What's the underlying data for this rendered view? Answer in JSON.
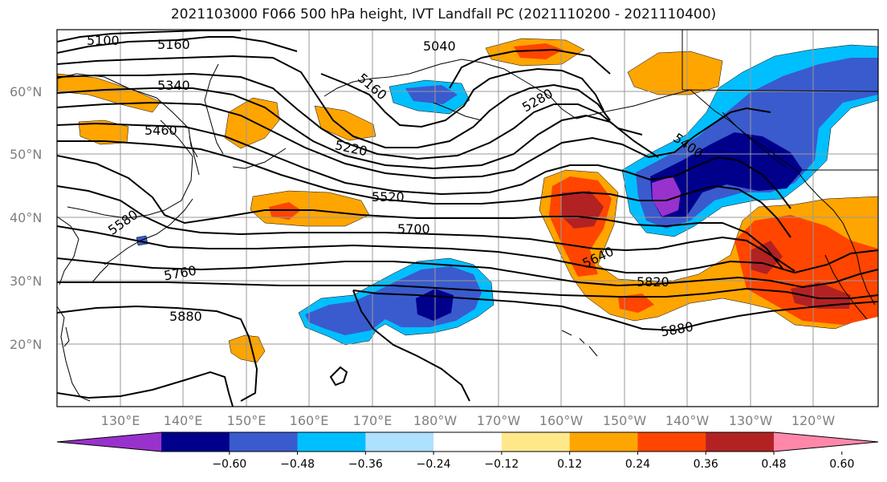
{
  "title": "2021103000 F066 500 hPa height, IVT Landfall PC (2021110200 - 2021110400)",
  "map": {
    "lat_labels": [
      "60°N",
      "50°N",
      "40°N",
      "30°N",
      "20°N"
    ],
    "lon_labels": [
      "130°E",
      "140°E",
      "150°E",
      "160°E",
      "170°E",
      "180°W",
      "170°W",
      "160°W",
      "150°W",
      "140°W",
      "130°W",
      "120°W"
    ],
    "contour_labels": [
      "5100",
      "5160",
      "5040",
      "5340",
      "5160",
      "5460",
      "5220",
      "5280",
      "5400",
      "5520",
      "5580",
      "5700",
      "5640",
      "5760",
      "5820",
      "5880",
      "5880"
    ]
  },
  "colorbar": {
    "colors": [
      "#9932cc",
      "#00008b",
      "#3a5bcd",
      "#00bfff",
      "#aee0ff",
      "#ffffff",
      "#ffe88a",
      "#ffa500",
      "#ff4500",
      "#b22222",
      "#ff88aa"
    ],
    "tick_labels": [
      "−0.60",
      "−0.48",
      "−0.36",
      "−0.24",
      "−0.12",
      "0.12",
      "0.24",
      "0.36",
      "0.48",
      "0.60"
    ]
  }
}
